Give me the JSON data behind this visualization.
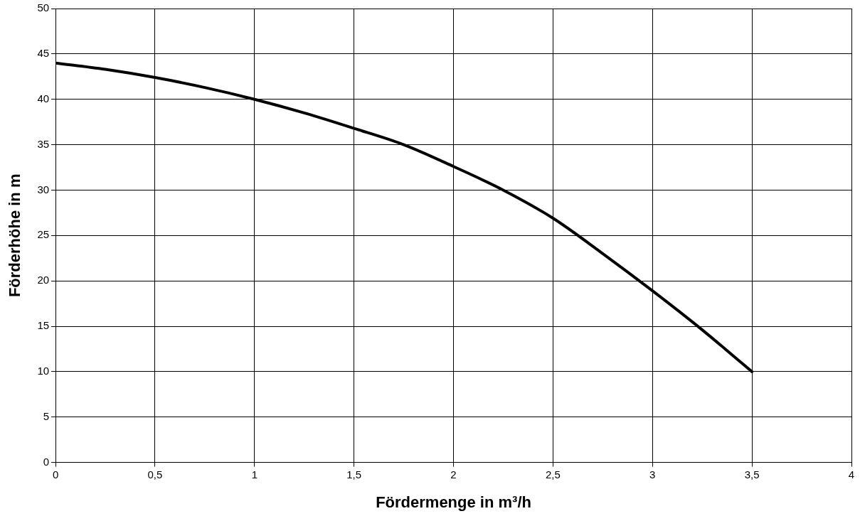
{
  "chart_data": {
    "type": "line",
    "xlabel": "Fördermenge in m³/h",
    "ylabel": "Förderhöhe in m",
    "x": [
      0,
      0.25,
      0.5,
      0.75,
      1,
      1.25,
      1.5,
      1.75,
      2,
      2.25,
      2.5,
      2.75,
      3,
      3.25,
      3.5
    ],
    "series": [
      {
        "color": "#000000",
        "values": [
          44,
          43.3,
          42.4,
          41.3,
          40,
          38.5,
          36.8,
          35,
          32.6,
          30,
          26.9,
          23,
          18.9,
          14.6,
          10
        ]
      }
    ],
    "xlim": [
      0,
      4
    ],
    "xticks": [
      0,
      {
        "value": 0.5,
        "label": "0,5"
      },
      1,
      {
        "value": 1.5,
        "label": "1,5"
      },
      2,
      {
        "value": 2.5,
        "label": "2,5"
      },
      3,
      {
        "value": 3.5,
        "label": "3,5"
      },
      4
    ],
    "ylim": [
      0,
      50
    ],
    "yticks": [
      0,
      5,
      10,
      15,
      20,
      25,
      30,
      35,
      40,
      45,
      50
    ],
    "grid": true,
    "legend": false,
    "marker": "none",
    "line_style": "solid"
  }
}
